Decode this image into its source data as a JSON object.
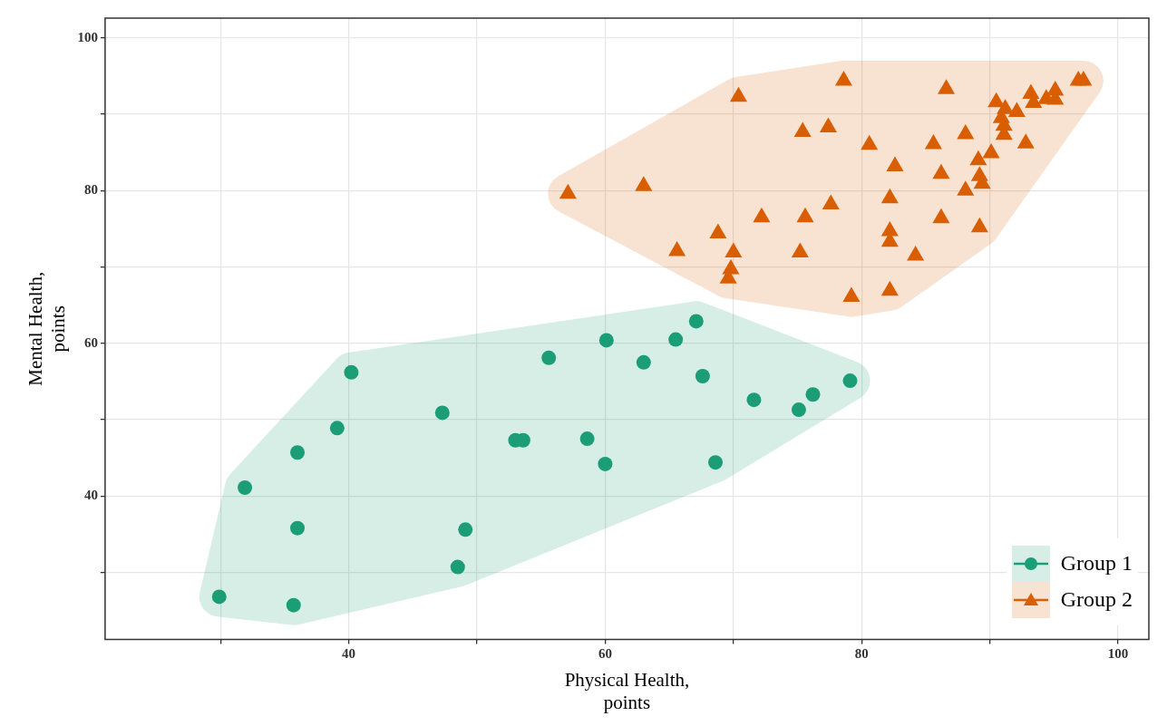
{
  "chart_data": {
    "type": "scatter",
    "xlabel": "Physical Health,\npoints",
    "ylabel": "Mental Health,\npoints",
    "xlim": [
      21,
      102.4
    ],
    "ylim": [
      21.2,
      102.6
    ],
    "xticks": [
      {
        "value": 30,
        "label": null
      },
      40,
      {
        "value": 50,
        "label": null
      },
      60,
      {
        "value": 70,
        "label": null
      },
      80,
      {
        "value": 90,
        "label": null
      },
      100
    ],
    "yticks": [
      {
        "value": 30,
        "label": null
      },
      40,
      {
        "value": 50,
        "label": null
      },
      60,
      {
        "value": 70,
        "label": null
      },
      80,
      {
        "value": 90,
        "label": null
      },
      100
    ],
    "grid": true,
    "legend": "bottom right",
    "series": [
      {
        "name": "Group 1",
        "color": "#1b9e77",
        "marker": "circle",
        "x": [
          29.9,
          31.9,
          36.0,
          36.0,
          35.7,
          39.1,
          40.2,
          47.3,
          48.5,
          49.1,
          53.0,
          53.6,
          55.6,
          58.6,
          60.0,
          60.1,
          63.0,
          65.5,
          67.1,
          67.6,
          68.6,
          71.6,
          75.1,
          76.2,
          79.1
        ],
        "values": [
          26.8,
          41.1,
          45.7,
          35.8,
          25.7,
          48.9,
          56.2,
          50.9,
          30.7,
          35.6,
          47.3,
          47.3,
          58.1,
          47.5,
          44.2,
          60.4,
          57.5,
          60.5,
          62.9,
          55.7,
          44.4,
          52.6,
          51.3,
          53.3,
          55.1
        ]
      },
      {
        "name": "Group 2",
        "color": "#d95f02",
        "marker": "triangle",
        "x": [
          57.1,
          63.0,
          65.6,
          68.8,
          70.0,
          69.8,
          69.6,
          70.4,
          72.2,
          75.4,
          75.2,
          75.6,
          77.4,
          77.6,
          78.6,
          79.2,
          80.6,
          82.2,
          82.2,
          82.2,
          82.2,
          82.6,
          84.2,
          85.6,
          86.2,
          86.2,
          86.6,
          88.1,
          88.1,
          89.2,
          89.1,
          89.2,
          89.4,
          90.1,
          90.5,
          90.9,
          91.1,
          91.1,
          91.2,
          92.1,
          92.8,
          93.2,
          93.4,
          94.4,
          95.1,
          95.1,
          96.9,
          97.3
        ],
        "values": [
          79.6,
          80.6,
          72.1,
          74.4,
          71.9,
          69.7,
          68.5,
          92.3,
          76.5,
          87.7,
          71.9,
          76.5,
          88.3,
          78.2,
          94.4,
          66.1,
          86.0,
          66.9,
          79.0,
          74.7,
          73.3,
          83.2,
          71.5,
          86.1,
          82.2,
          76.4,
          93.3,
          87.4,
          80.0,
          75.2,
          84.0,
          81.9,
          80.9,
          84.9,
          91.6,
          89.5,
          88.5,
          87.3,
          90.7,
          90.3,
          86.2,
          92.7,
          91.5,
          92.0,
          93.1,
          91.9,
          94.4,
          94.4
        ]
      }
    ]
  }
}
